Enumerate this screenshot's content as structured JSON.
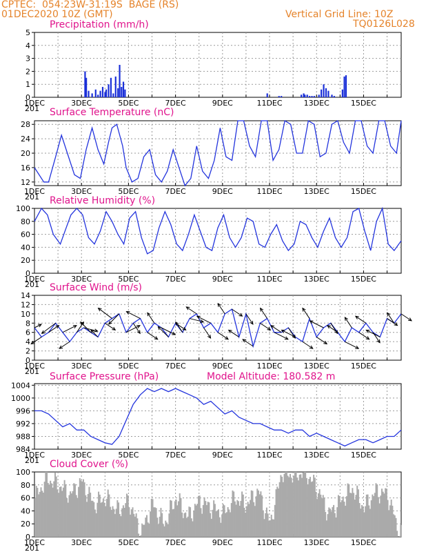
{
  "header": {
    "station_line": "CPTEC:  054:23W-31:19S  BAGE (RS)",
    "date_line": "01DEC2020 10Z (GMT)",
    "grid_note": "Vertical Grid Line: 10Z",
    "model": "TQ0126L028"
  },
  "x_axis": {
    "labels": [
      "1DEC",
      "3DEC",
      "5DEC",
      "7DEC",
      "9DEC",
      "11DEC",
      "13DEC",
      "15DEC"
    ],
    "label_days": [
      0,
      2,
      4,
      6,
      8,
      10,
      12,
      14
    ],
    "days": 15.6,
    "clipped_label": "201"
  },
  "panels": {
    "precip": {
      "title": "Precipitation (mm/h)"
    },
    "temp": {
      "title": "Surface Temperature (nC)"
    },
    "rh": {
      "title": "Relative Humidity (%)"
    },
    "wind": {
      "title": "Surface Wind (m/s)"
    },
    "pressure": {
      "title": "Surface Pressure (hPa)",
      "altitude": "Model Altitude: 180.582 m"
    },
    "cloud": {
      "title": "Cloud Cover (%)"
    }
  },
  "colors": {
    "line": "#2233dd",
    "bar": "#1a2fd8",
    "cloud": "#aaaaaa",
    "grid": "#999999"
  },
  "chart_data": [
    {
      "type": "bar",
      "title": "Precipitation (mm/h)",
      "ylim": [
        0,
        5
      ],
      "yticks": [
        0,
        1,
        2,
        3,
        4,
        5
      ],
      "x_days": [
        2.15,
        2.2,
        2.3,
        2.45,
        2.6,
        2.7,
        2.8,
        2.9,
        3.0,
        3.05,
        3.15,
        3.25,
        3.35,
        3.45,
        3.55,
        3.62,
        3.7,
        3.78,
        3.85,
        9.9,
        10.4,
        10.5,
        11.35,
        11.45,
        11.5,
        11.6,
        11.7,
        11.8,
        11.9,
        12.1,
        12.2,
        12.3,
        12.4,
        12.5,
        12.65,
        12.75,
        13.1,
        13.18,
        13.25
      ],
      "values": [
        2.0,
        1.5,
        0.5,
        0.3,
        0.6,
        0.2,
        0.5,
        0.8,
        0.4,
        0.6,
        1.0,
        1.5,
        0.3,
        1.6,
        0.7,
        2.5,
        0.8,
        1.2,
        0.6,
        0.3,
        0.1,
        0.1,
        0.2,
        0.3,
        0.2,
        0.2,
        0.1,
        0.1,
        0.1,
        0.2,
        0.6,
        1.0,
        0.7,
        0.5,
        0.2,
        0.1,
        0.6,
        1.6,
        1.7
      ]
    },
    {
      "type": "line",
      "title": "Surface Temperature (nC)",
      "ylim": [
        11,
        29
      ],
      "yticks": [
        12,
        16,
        20,
        24,
        28
      ],
      "x_days": [
        0,
        0.4,
        0.6,
        0.9,
        1.15,
        1.4,
        1.7,
        1.95,
        2.2,
        2.45,
        2.7,
        2.95,
        3.15,
        3.3,
        3.5,
        3.75,
        3.9,
        4.15,
        4.4,
        4.65,
        4.9,
        5.15,
        5.4,
        5.65,
        5.9,
        6.15,
        6.4,
        6.65,
        6.9,
        7.15,
        7.4,
        7.65,
        7.9,
        8.15,
        8.4,
        8.65,
        8.9,
        9.15,
        9.4,
        9.65,
        9.9,
        10.15,
        10.4,
        10.65,
        10.9,
        11.15,
        11.4,
        11.65,
        11.9,
        12.15,
        12.4,
        12.65,
        12.9,
        13.15,
        13.4,
        13.65,
        13.9,
        14.15,
        14.4,
        14.65,
        14.9,
        15.15,
        15.4,
        15.6
      ],
      "values": [
        16,
        12,
        12,
        19,
        25,
        20,
        14,
        13,
        21,
        27,
        21,
        17,
        23,
        27,
        28,
        22,
        16,
        12,
        13,
        19,
        21,
        14,
        12,
        15,
        21,
        16,
        11,
        13,
        22,
        15,
        13,
        18,
        27,
        19,
        18,
        29,
        29,
        22,
        19,
        29,
        29,
        18,
        21,
        29,
        28,
        20,
        20,
        29,
        28,
        19,
        20,
        28,
        29,
        23,
        20,
        29,
        29,
        22,
        20,
        29,
        29,
        22,
        20,
        29
      ]
    },
    {
      "type": "line",
      "title": "Relative Humidity (%)",
      "ylim": [
        0,
        100
      ],
      "yticks": [
        0,
        20,
        40,
        60,
        80,
        100
      ],
      "x_days": [
        0,
        0.3,
        0.55,
        0.8,
        1.1,
        1.35,
        1.55,
        1.8,
        2.05,
        2.3,
        2.55,
        2.8,
        3.05,
        3.3,
        3.55,
        3.8,
        4.05,
        4.3,
        4.55,
        4.8,
        5.05,
        5.3,
        5.55,
        5.8,
        6.05,
        6.3,
        6.55,
        6.8,
        7.05,
        7.3,
        7.55,
        7.8,
        8.05,
        8.3,
        8.55,
        8.8,
        9.05,
        9.3,
        9.55,
        9.8,
        10.05,
        10.3,
        10.55,
        10.8,
        11.05,
        11.3,
        11.55,
        11.8,
        12.05,
        12.3,
        12.55,
        12.8,
        13.05,
        13.3,
        13.55,
        13.8,
        14.05,
        14.3,
        14.55,
        14.8,
        15.05,
        15.3,
        15.6
      ],
      "values": [
        80,
        100,
        90,
        60,
        45,
        70,
        90,
        100,
        90,
        55,
        45,
        65,
        95,
        80,
        60,
        45,
        85,
        95,
        55,
        30,
        35,
        70,
        95,
        75,
        45,
        35,
        60,
        90,
        65,
        40,
        35,
        70,
        90,
        55,
        40,
        55,
        85,
        80,
        45,
        40,
        60,
        75,
        50,
        35,
        45,
        80,
        75,
        55,
        40,
        65,
        85,
        55,
        40,
        55,
        95,
        100,
        65,
        35,
        80,
        100,
        45,
        35,
        50
      ]
    },
    {
      "type": "line",
      "title": "Surface Wind (m/s)",
      "ylim": [
        0,
        14
      ],
      "yticks": [
        0,
        2,
        4,
        6,
        8,
        10,
        12,
        14
      ],
      "x_days": [
        0,
        0.3,
        0.6,
        0.9,
        1.2,
        1.5,
        1.8,
        2.1,
        2.4,
        2.7,
        3.0,
        3.3,
        3.6,
        3.9,
        4.2,
        4.5,
        4.8,
        5.1,
        5.4,
        5.7,
        6.0,
        6.3,
        6.6,
        6.9,
        7.2,
        7.5,
        7.8,
        8.1,
        8.4,
        8.7,
        9.0,
        9.3,
        9.6,
        9.9,
        10.2,
        10.5,
        10.8,
        11.1,
        11.4,
        11.7,
        12.0,
        12.3,
        12.6,
        12.9,
        13.2,
        13.5,
        13.8,
        14.1,
        14.4,
        14.7,
        15.0,
        15.3,
        15.6
      ],
      "values": [
        7,
        5,
        6,
        8,
        6,
        4,
        6,
        7,
        6,
        5,
        8,
        9,
        10,
        6,
        8,
        9,
        6,
        8,
        7,
        5,
        8,
        6,
        9,
        10,
        7,
        8,
        6,
        10,
        11,
        5,
        10,
        3,
        8,
        9,
        6,
        6,
        7,
        5,
        4,
        9,
        5,
        7,
        8,
        6,
        4,
        7,
        6,
        8,
        6,
        5,
        9,
        8,
        10
      ],
      "arrows_u": [
        2,
        -3,
        3,
        -4,
        4,
        -3,
        2,
        4,
        -3,
        -2,
        3,
        -4,
        -3,
        4,
        2,
        -4,
        3,
        -2,
        4,
        -3,
        3,
        -2,
        4,
        -3,
        2,
        -4,
        3,
        -2,
        3,
        -3,
        2,
        -3,
        3,
        -2,
        4,
        -3,
        2,
        -4,
        3,
        -2,
        3,
        -4,
        2,
        -3,
        4,
        -2,
        3,
        -3,
        2,
        -4,
        3,
        -2,
        3
      ],
      "arrows_v": [
        1,
        -2,
        2,
        -3,
        2,
        -2,
        3,
        -1,
        3,
        2,
        -2,
        3,
        -3,
        2,
        -3,
        2,
        -2,
        3,
        -2,
        3,
        -2,
        3,
        -1,
        2,
        -3,
        2,
        -2,
        3,
        -2,
        2,
        -3,
        2,
        -2,
        3,
        -2,
        2,
        -3,
        2,
        -2,
        3,
        -2,
        2,
        -3,
        2,
        -2,
        3,
        -2,
        2,
        -3,
        2,
        -2,
        3,
        -2
      ]
    },
    {
      "type": "line",
      "title": "Surface Pressure (hPa)",
      "ylim": [
        984,
        1004.5
      ],
      "yticks": [
        984,
        988,
        992,
        996,
        1000,
        1004
      ],
      "x_days": [
        0,
        0.3,
        0.6,
        0.9,
        1.2,
        1.5,
        1.8,
        2.1,
        2.4,
        2.7,
        3.0,
        3.3,
        3.6,
        3.9,
        4.2,
        4.5,
        4.8,
        5.1,
        5.4,
        5.7,
        6.0,
        6.3,
        6.6,
        6.9,
        7.2,
        7.5,
        7.8,
        8.1,
        8.4,
        8.7,
        9.0,
        9.3,
        9.6,
        9.9,
        10.2,
        10.5,
        10.8,
        11.1,
        11.4,
        11.7,
        12.0,
        12.3,
        12.6,
        12.9,
        13.2,
        13.5,
        13.8,
        14.1,
        14.4,
        14.7,
        15.0,
        15.3,
        15.6
      ],
      "values": [
        996,
        996,
        995,
        993,
        991,
        992,
        990,
        990,
        988,
        987,
        986,
        985.5,
        988,
        993,
        998,
        1001,
        1003,
        1002,
        1003,
        1002,
        1003,
        1002,
        1001,
        1000,
        998,
        999,
        997,
        995,
        996,
        994,
        993,
        992,
        992,
        991,
        990,
        990,
        989,
        990,
        990,
        988,
        989,
        988,
        987,
        986,
        985,
        986,
        987,
        987,
        986,
        987,
        988,
        988,
        990
      ]
    },
    {
      "type": "bar",
      "title": "Cloud Cover (%)",
      "ylim": [
        0,
        100
      ],
      "yticks": [
        0,
        20,
        40,
        60,
        80,
        100
      ],
      "x_days": [
        0,
        0.5,
        1.0,
        1.5,
        2.0,
        2.5,
        3.0,
        3.5,
        4.0,
        4.5,
        5.0,
        5.5,
        6.0,
        6.5,
        7.0,
        7.5,
        8.0,
        8.5,
        9.0,
        9.5,
        10.0,
        10.5,
        11.0,
        11.5,
        12.0,
        12.5,
        13.0,
        13.5,
        14.0,
        14.5,
        15.0,
        15.5
      ],
      "values": [
        60,
        90,
        80,
        65,
        85,
        50,
        60,
        40,
        55,
        5,
        50,
        20,
        60,
        30,
        55,
        45,
        35,
        60,
        50,
        70,
        20,
        100,
        95,
        100,
        75,
        35,
        55,
        75,
        45,
        70,
        65,
        5
      ]
    }
  ]
}
